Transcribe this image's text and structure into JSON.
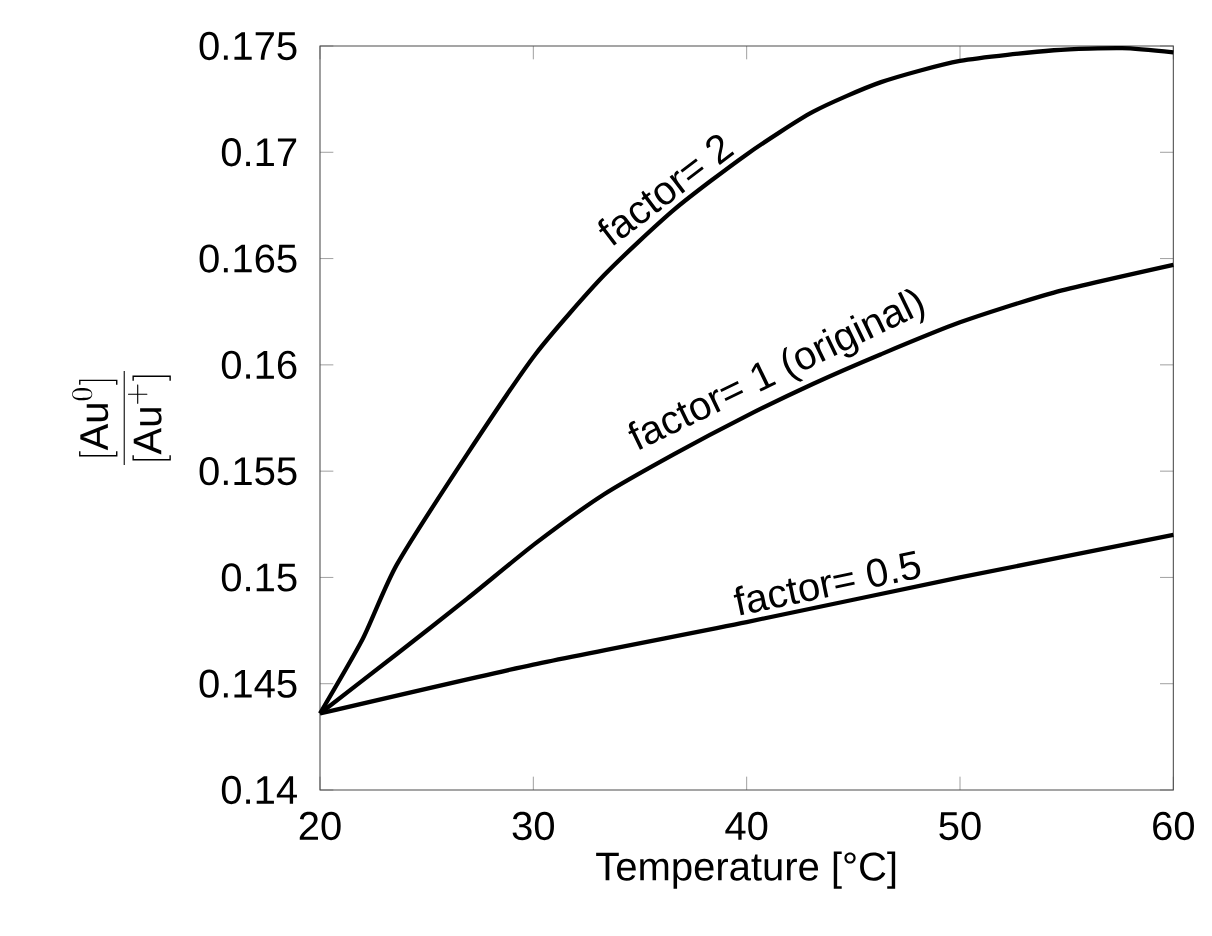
{
  "chart_data": {
    "type": "line",
    "xlabel": "Temperature [°C]",
    "ylabel": "\\frac{[\\mathrm{Au}^{0}]}{[\\mathrm{Au}^{+}]}",
    "xlim": [
      20,
      60
    ],
    "ylim": [
      0.14,
      0.175
    ],
    "xticks": [
      20,
      30,
      40,
      50,
      60
    ],
    "yticks": [
      0.14,
      0.145,
      0.15,
      0.155,
      0.16,
      0.165,
      0.17,
      0.175
    ],
    "grid": false,
    "marker": "none",
    "line_style": "solid",
    "series": [
      {
        "name": "factor= 2",
        "color": "#000000",
        "x": [
          20,
          22.0,
          23.6,
          26.9,
          30.1,
          33.3,
          36.6,
          40,
          43.1,
          46.3,
          50,
          54.4,
          57.6,
          60
        ],
        "values": [
          0.1436,
          0.1471,
          0.1506,
          0.1558,
          0.1605,
          0.1642,
          0.1673,
          0.1699,
          0.1719,
          0.1733,
          0.1743,
          0.1748,
          0.1749,
          0.1747
        ]
      },
      {
        "name": "factor= 1 (original)",
        "color": "#000000",
        "x": [
          20,
          23.6,
          26.9,
          30.1,
          33.3,
          36.6,
          40,
          43.1,
          46.3,
          50,
          54.4,
          60
        ],
        "values": [
          0.1436,
          0.1464,
          0.149,
          0.1516,
          0.1539,
          0.1558,
          0.1576,
          0.1591,
          0.1605,
          0.162,
          0.1634,
          0.1647
        ]
      },
      {
        "name": "factor= 0.5",
        "color": "#000000",
        "x": [
          20,
          30,
          40,
          50,
          60
        ],
        "values": [
          0.1436,
          0.1459,
          0.1479,
          0.15,
          0.152
        ]
      }
    ]
  }
}
